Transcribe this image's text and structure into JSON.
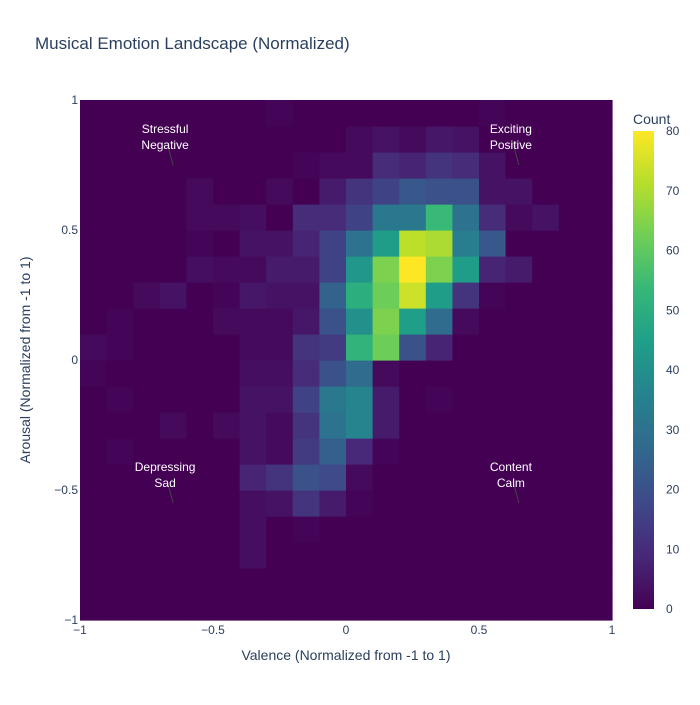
{
  "chart_data": {
    "type": "heatmap",
    "title": "Musical Emotion Landscape (Normalized)",
    "xlabel": "Valence (Normalized from -1 to 1)",
    "ylabel": "Arousal (Normalized from -1 to 1)",
    "xlim": [
      -1,
      1
    ],
    "ylim": [
      -1,
      1
    ],
    "x_ticks": [
      "−1",
      "−0.5",
      "0",
      "0.5",
      "1"
    ],
    "x_tick_values": [
      -1,
      -0.5,
      0,
      0.5,
      1
    ],
    "y_ticks": [
      "−1",
      "−0.5",
      "0",
      "0.5",
      "1"
    ],
    "y_tick_values": [
      -1,
      -0.5,
      0,
      0.5,
      1
    ],
    "colorbar": {
      "title": "Count",
      "range": [
        0,
        80
      ],
      "ticks": [
        "0",
        "10",
        "20",
        "30",
        "40",
        "50",
        "60",
        "70",
        "80"
      ],
      "tick_values": [
        0,
        10,
        20,
        30,
        40,
        50,
        60,
        70,
        80
      ],
      "colorscale": "Viridis"
    },
    "bins": {
      "nx": 20,
      "ny": 20,
      "x_start": -1,
      "y_start": -1,
      "bin_size": 0.1
    },
    "counts": [
      [
        0,
        0,
        0,
        0,
        0,
        0,
        0,
        0,
        0,
        0,
        0,
        0,
        0,
        0,
        0,
        0,
        0,
        0,
        0,
        0
      ],
      [
        0,
        0,
        0,
        0,
        0,
        0,
        0,
        0,
        0,
        0,
        0,
        0,
        0,
        0,
        0,
        0,
        0,
        0,
        0,
        0
      ],
      [
        0,
        0,
        0,
        0,
        0,
        0,
        3,
        0,
        0,
        0,
        0,
        0,
        0,
        0,
        0,
        0,
        0,
        0,
        0,
        0
      ],
      [
        0,
        0,
        0,
        0,
        0,
        0,
        3,
        0,
        1,
        0,
        0,
        0,
        0,
        0,
        0,
        0,
        0,
        0,
        0,
        0
      ],
      [
        0,
        0,
        0,
        0,
        0,
        0,
        3,
        4,
        12,
        6,
        1,
        0,
        0,
        0,
        0,
        0,
        0,
        0,
        0,
        0
      ],
      [
        0,
        0,
        0,
        0,
        0,
        0,
        8,
        12,
        20,
        18,
        2,
        0,
        0,
        0,
        0,
        0,
        0,
        0,
        0,
        0
      ],
      [
        0,
        1,
        0,
        0,
        0,
        0,
        4,
        2,
        14,
        24,
        9,
        1,
        0,
        0,
        0,
        0,
        0,
        0,
        0,
        0
      ],
      [
        0,
        0,
        0,
        2,
        0,
        2,
        4,
        2,
        12,
        30,
        36,
        6,
        0,
        0,
        0,
        0,
        0,
        0,
        0,
        0
      ],
      [
        0,
        1,
        0,
        0,
        0,
        0,
        4,
        4,
        16,
        32,
        36,
        6,
        0,
        1,
        0,
        0,
        0,
        0,
        0,
        0
      ],
      [
        1,
        0,
        0,
        0,
        0,
        0,
        3,
        3,
        10,
        20,
        28,
        2,
        0,
        0,
        0,
        0,
        0,
        0,
        0,
        0
      ],
      [
        2,
        1,
        0,
        0,
        0,
        0,
        2,
        2,
        12,
        14,
        52,
        62,
        20,
        8,
        0,
        0,
        0,
        0,
        0,
        0
      ],
      [
        0,
        1,
        0,
        0,
        0,
        2,
        2,
        2,
        5,
        20,
        40,
        64,
        45,
        28,
        2,
        0,
        0,
        0,
        0,
        0
      ],
      [
        0,
        0,
        2,
        4,
        0,
        1,
        5,
        4,
        4,
        25,
        50,
        62,
        74,
        44,
        12,
        1,
        0,
        0,
        0,
        0
      ],
      [
        0,
        0,
        0,
        0,
        3,
        2,
        2,
        6,
        6,
        16,
        42,
        64,
        80,
        64,
        44,
        8,
        6,
        0,
        0,
        0
      ],
      [
        0,
        0,
        0,
        0,
        1,
        0,
        4,
        4,
        8,
        16,
        30,
        44,
        72,
        70,
        34,
        22,
        0,
        0,
        0,
        0
      ],
      [
        0,
        0,
        0,
        0,
        2,
        2,
        3,
        0,
        10,
        10,
        16,
        32,
        32,
        54,
        30,
        10,
        2,
        4,
        0,
        0
      ],
      [
        0,
        0,
        0,
        0,
        2,
        0,
        0,
        2,
        0,
        6,
        12,
        16,
        22,
        20,
        20,
        4,
        4,
        0,
        0,
        0
      ],
      [
        0,
        0,
        0,
        0,
        0,
        0,
        0,
        0,
        1,
        2,
        2,
        10,
        8,
        12,
        10,
        4,
        0,
        0,
        0,
        0
      ],
      [
        0,
        0,
        0,
        0,
        0,
        0,
        0,
        0,
        0,
        0,
        2,
        4,
        2,
        5,
        4,
        0,
        0,
        0,
        0,
        0
      ],
      [
        0,
        0,
        0,
        0,
        0,
        0,
        0,
        1,
        0,
        0,
        0,
        0,
        0,
        0,
        0,
        1,
        0,
        0,
        0,
        0
      ]
    ],
    "annotations": [
      {
        "lines": [
          "Stressful",
          "Negative"
        ],
        "x": -0.65,
        "y": 0.75
      },
      {
        "lines": [
          "Exciting",
          "Positive"
        ],
        "x": 0.65,
        "y": 0.75
      },
      {
        "lines": [
          "Depressing",
          "Sad"
        ],
        "x": -0.65,
        "y": -0.55
      },
      {
        "lines": [
          "Content",
          "Calm"
        ],
        "x": 0.65,
        "y": -0.55
      }
    ]
  }
}
